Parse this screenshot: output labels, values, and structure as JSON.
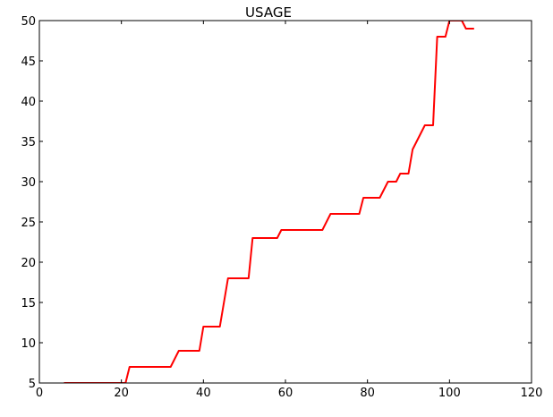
{
  "chart_data": {
    "type": "line",
    "title": "USAGE",
    "xlabel": "",
    "ylabel": "",
    "xlim": [
      0,
      120
    ],
    "ylim": [
      5,
      50
    ],
    "x_ticks": [
      0,
      20,
      40,
      60,
      80,
      100,
      120
    ],
    "y_ticks": [
      5,
      10,
      15,
      20,
      25,
      30,
      35,
      40,
      45,
      50
    ],
    "x_tick_labels": [
      "0",
      "20",
      "40",
      "60",
      "80",
      "100",
      "120"
    ],
    "y_tick_labels": [
      "5",
      "10",
      "15",
      "20",
      "25",
      "30",
      "35",
      "40",
      "45",
      "50"
    ],
    "grid": false,
    "legend": "none",
    "series": [
      {
        "color": "#ff0000",
        "x": [
          6,
          20,
          21,
          22,
          32,
          34,
          39,
          40,
          44,
          46,
          51,
          52,
          58,
          59,
          69,
          71,
          78,
          79,
          83,
          85,
          87,
          88,
          90,
          91,
          94,
          96,
          97,
          99,
          100,
          101,
          103,
          104,
          106
        ],
        "y": [
          5,
          5,
          5,
          7,
          7,
          9,
          9,
          12,
          12,
          18,
          18,
          23,
          23,
          24,
          24,
          26,
          26,
          28,
          28,
          30,
          30,
          31,
          31,
          34,
          37,
          37,
          48,
          48,
          50,
          50,
          50,
          49,
          49
        ]
      }
    ]
  }
}
